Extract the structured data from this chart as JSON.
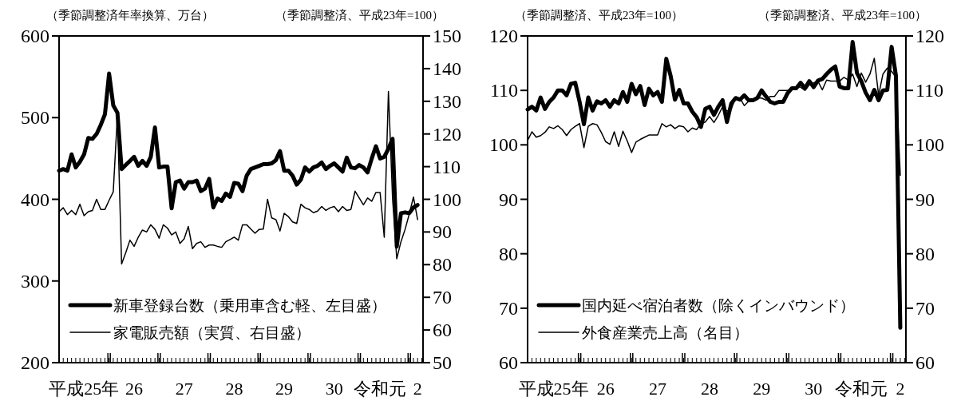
{
  "chart_data": [
    {
      "type": "line",
      "ylabel": "（季節調整済年率換算、万台）",
      "y2label": "（季節調整済、平成23年=100）",
      "categories": [
        null,
        null,
        null,
        null,
        null,
        null,
        "平成25年",
        null,
        null,
        null,
        null,
        null,
        null,
        null,
        null,
        null,
        null,
        null,
        "26",
        null,
        null,
        null,
        null,
        null,
        null,
        null,
        null,
        null,
        null,
        null,
        "27",
        null,
        null,
        null,
        null,
        null,
        null,
        null,
        null,
        null,
        null,
        null,
        "28",
        null,
        null,
        null,
        null,
        null,
        null,
        null,
        null,
        null,
        null,
        null,
        "29",
        null,
        null,
        null,
        null,
        null,
        null,
        null,
        null,
        null,
        null,
        null,
        "30",
        null,
        null,
        null,
        null,
        null,
        null,
        null,
        null,
        null,
        null,
        "令和元",
        null,
        null,
        null,
        null,
        null,
        null,
        null,
        null,
        "2"
      ],
      "ylim": [
        200,
        600
      ],
      "yticks": [
        200,
        300,
        400,
        500,
        600
      ],
      "y2lim": [
        50,
        150
      ],
      "y2ticks": [
        50,
        60,
        70,
        80,
        90,
        100,
        110,
        120,
        130,
        140,
        150
      ],
      "legend": "bottom left",
      "series": [
        {
          "name": "新車登録台数（乗用車含む軽、左目盛）",
          "color": "#000000",
          "values": [
            435,
            437,
            435,
            455,
            439,
            446,
            455,
            475,
            474,
            480,
            491,
            504,
            554,
            515,
            506,
            437,
            442,
            447,
            452,
            441,
            447,
            441,
            452,
            488,
            439,
            440,
            440,
            389,
            421,
            423,
            413,
            421,
            421,
            423,
            410,
            413,
            425,
            390,
            401,
            398,
            407,
            403,
            420,
            419,
            410,
            429,
            437,
            439,
            441,
            443,
            443,
            444,
            448,
            459,
            435,
            435,
            429,
            418,
            424,
            439,
            434,
            439,
            441,
            445,
            437,
            441,
            444,
            439,
            434,
            451,
            439,
            438,
            442,
            439,
            433,
            450,
            465,
            450,
            452,
            462,
            474,
            342,
            383,
            384,
            383,
            390,
            393
          ]
        },
        {
          "name": "家電販売額（実質、右目盛）",
          "color": "#000000",
          "axis": "y2",
          "values": [
            96.2,
            97.4,
            95.3,
            96.6,
            95.3,
            98.5,
            95,
            96.2,
            96.6,
            100,
            96.9,
            96.9,
            99.7,
            102.3,
            126,
            80.2,
            83.7,
            87.5,
            85.6,
            88.4,
            90.6,
            90,
            92.2,
            90.8,
            88.1,
            92.2,
            91.2,
            89.1,
            90,
            86.5,
            87.9,
            91.7,
            84.9,
            86.5,
            87,
            85.3,
            86,
            86,
            85.6,
            85.3,
            87,
            87.7,
            88.4,
            87.5,
            92.2,
            92.2,
            90.9,
            89.6,
            90.8,
            90.9,
            100,
            94.3,
            93.8,
            90.3,
            95.7,
            94.7,
            93.1,
            92.6,
            98.5,
            97.4,
            96.9,
            95.9,
            96.4,
            97.8,
            96.6,
            97.4,
            97.8,
            96.2,
            97.8,
            96.6,
            96.9,
            102.5,
            100.4,
            98.3,
            100.4,
            99.4,
            102.1,
            102.1,
            88.4,
            133,
            100,
            81.8,
            87,
            90.8,
            95.5,
            100.7,
            93.8
          ]
        }
      ]
    },
    {
      "type": "line",
      "ylabel": "（季節調整済、平成23年=100）",
      "y2label": "（季節調整済、平成23年=100）",
      "categories": [
        null,
        null,
        null,
        null,
        null,
        null,
        "平成25年",
        null,
        null,
        null,
        null,
        null,
        null,
        null,
        null,
        null,
        null,
        null,
        "26",
        null,
        null,
        null,
        null,
        null,
        null,
        null,
        null,
        null,
        null,
        null,
        "27",
        null,
        null,
        null,
        null,
        null,
        null,
        null,
        null,
        null,
        null,
        null,
        "28",
        null,
        null,
        null,
        null,
        null,
        null,
        null,
        null,
        null,
        null,
        null,
        "29",
        null,
        null,
        null,
        null,
        null,
        null,
        null,
        null,
        null,
        null,
        null,
        "30",
        null,
        null,
        null,
        null,
        null,
        null,
        null,
        null,
        null,
        null,
        "令和元",
        null,
        null,
        null,
        null,
        null,
        null,
        null,
        null,
        "2"
      ],
      "ylim": [
        60,
        120
      ],
      "yticks": [
        60,
        70,
        80,
        90,
        100,
        110,
        120
      ],
      "y2lim": [
        60,
        120
      ],
      "y2ticks": [
        60,
        70,
        80,
        90,
        100,
        110,
        120
      ],
      "legend": "bottom left",
      "series": [
        {
          "name": "国内延べ宿泊者数（除くインバウンド）",
          "color": "#000000",
          "values": [
            106.5,
            107,
            106.3,
            108.7,
            106.6,
            107.9,
            108.7,
            110,
            110,
            109.1,
            111.2,
            111.4,
            107.9,
            103.8,
            108.7,
            106.3,
            108,
            107.6,
            108.2,
            107,
            108.2,
            107.6,
            109.7,
            107.9,
            111.2,
            109.3,
            110.8,
            107.3,
            110.3,
            109.1,
            109.7,
            107.9,
            115.8,
            112.7,
            108.3,
            110.1,
            107.6,
            107.6,
            106.1,
            105.1,
            103.3,
            106.6,
            107,
            105.5,
            107,
            108.2,
            104.2,
            107.6,
            108.6,
            108.3,
            109.1,
            108.2,
            108.2,
            108.6,
            110,
            108.9,
            107.9,
            107.6,
            107.9,
            107.9,
            109.5,
            110.4,
            110.4,
            111.4,
            110.4,
            111.7,
            110.6,
            111.8,
            112.1,
            113,
            113.8,
            114.4,
            110.7,
            110.4,
            110.4,
            118.9,
            113.2,
            111.7,
            109.6,
            108.2,
            110.1,
            108.2,
            110,
            110.1,
            118,
            112.7,
            66.4
          ]
        },
        {
          "name": "外食産業売上高（名目）",
          "color": "#000000",
          "axis": "y2",
          "values": [
            100.8,
            102.4,
            101.4,
            101.7,
            102.3,
            103.3,
            103,
            103.5,
            102.8,
            101.7,
            102.8,
            103.4,
            103.9,
            99.5,
            103.4,
            103.9,
            103.7,
            102.3,
            100.6,
            100.1,
            102.4,
            99.7,
            102.5,
            100.7,
            98.6,
            100.5,
            101,
            101.4,
            101.8,
            101.8,
            101.8,
            103.9,
            103.3,
            103.7,
            103,
            103.5,
            103.3,
            102.4,
            103.1,
            102.8,
            103.9,
            104.2,
            105.2,
            104.1,
            105.4,
            107,
            106.2,
            106.6,
            108.6,
            108.6,
            107.2,
            108,
            108.2,
            108.6,
            108.6,
            108.2,
            108.9,
            108.9,
            110,
            110,
            110,
            110.4,
            110.6,
            110.6,
            110,
            111,
            111.4,
            111.7,
            110.1,
            111.9,
            111.7,
            111.7,
            111.7,
            112.4,
            111.9,
            113,
            110.7,
            113.2,
            111.5,
            113,
            115.9,
            109.1,
            113,
            114.1,
            113.5,
            112.4,
            94.4
          ]
        }
      ]
    }
  ]
}
